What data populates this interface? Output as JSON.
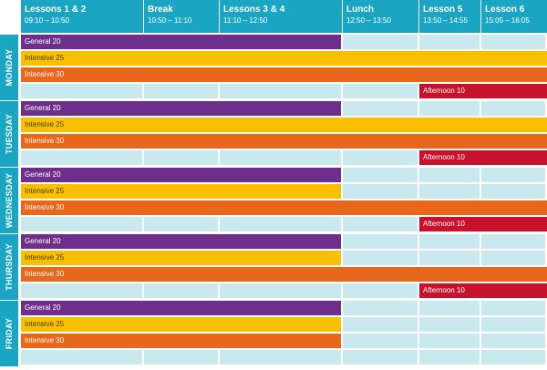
{
  "columns": [
    {
      "title": "Lessons 1 & 2",
      "time": "09:10 – 10:50"
    },
    {
      "title": "Break",
      "time": "10:50 – 11:10"
    },
    {
      "title": "Lessons 3 & 4",
      "time": "11:10 – 12:50"
    },
    {
      "title": "Lunch",
      "time": "12:50 – 13:50"
    },
    {
      "title": "Lesson 5",
      "time": "13:50 – 14:55"
    },
    {
      "title": "Lesson 6",
      "time": "15:05 – 16:05"
    }
  ],
  "days": [
    {
      "name": "MONDAY",
      "courses": [
        {
          "label": "General 20",
          "kind": "general",
          "start_col": 0,
          "end_col": 2
        },
        {
          "label": "Intensive 25",
          "kind": "intensive25",
          "start_col": 0,
          "end_col": 5
        },
        {
          "label": "Intensive 30",
          "kind": "intensive30",
          "start_col": 0,
          "end_col": 5
        },
        {
          "label": "Afternoon 10",
          "kind": "afternoon",
          "start_col": 4,
          "end_col": 5
        }
      ]
    },
    {
      "name": "TUESDAY",
      "courses": [
        {
          "label": "General 20",
          "kind": "general",
          "start_col": 0,
          "end_col": 2
        },
        {
          "label": "Intensive 25",
          "kind": "intensive25",
          "start_col": 0,
          "end_col": 5
        },
        {
          "label": "Intensive 30",
          "kind": "intensive30",
          "start_col": 0,
          "end_col": 5
        },
        {
          "label": "Afternoon 10",
          "kind": "afternoon",
          "start_col": 4,
          "end_col": 5
        }
      ]
    },
    {
      "name": "WEDNESDAY",
      "courses": [
        {
          "label": "General 20",
          "kind": "general",
          "start_col": 0,
          "end_col": 2
        },
        {
          "label": "Intensive 25",
          "kind": "intensive25",
          "start_col": 0,
          "end_col": 2
        },
        {
          "label": "Intensive 30",
          "kind": "intensive30",
          "start_col": 0,
          "end_col": 5
        },
        {
          "label": "Afternoon 10",
          "kind": "afternoon",
          "start_col": 4,
          "end_col": 5
        }
      ]
    },
    {
      "name": "THURSDAY",
      "courses": [
        {
          "label": "General 20",
          "kind": "general",
          "start_col": 0,
          "end_col": 2
        },
        {
          "label": "Intensive 25",
          "kind": "intensive25",
          "start_col": 0,
          "end_col": 2
        },
        {
          "label": "Intensive 30",
          "kind": "intensive30",
          "start_col": 0,
          "end_col": 5
        },
        {
          "label": "Afternoon 10",
          "kind": "afternoon",
          "start_col": 4,
          "end_col": 5
        }
      ]
    },
    {
      "name": "FRIDAY",
      "courses": [
        {
          "label": "General 20",
          "kind": "general",
          "start_col": 0,
          "end_col": 2
        },
        {
          "label": "Intensive 25",
          "kind": "intensive25",
          "start_col": 0,
          "end_col": 2
        },
        {
          "label": "Intensive 30",
          "kind": "intensive30",
          "start_col": 0,
          "end_col": 2
        }
      ]
    }
  ],
  "colors": {
    "header": "#1aa6c2",
    "empty_cell": "#c9e9ef",
    "general": "#6e2f8c",
    "intensive25": "#f8c000",
    "intensive30": "#e8671a",
    "afternoon": "#c8122c"
  }
}
